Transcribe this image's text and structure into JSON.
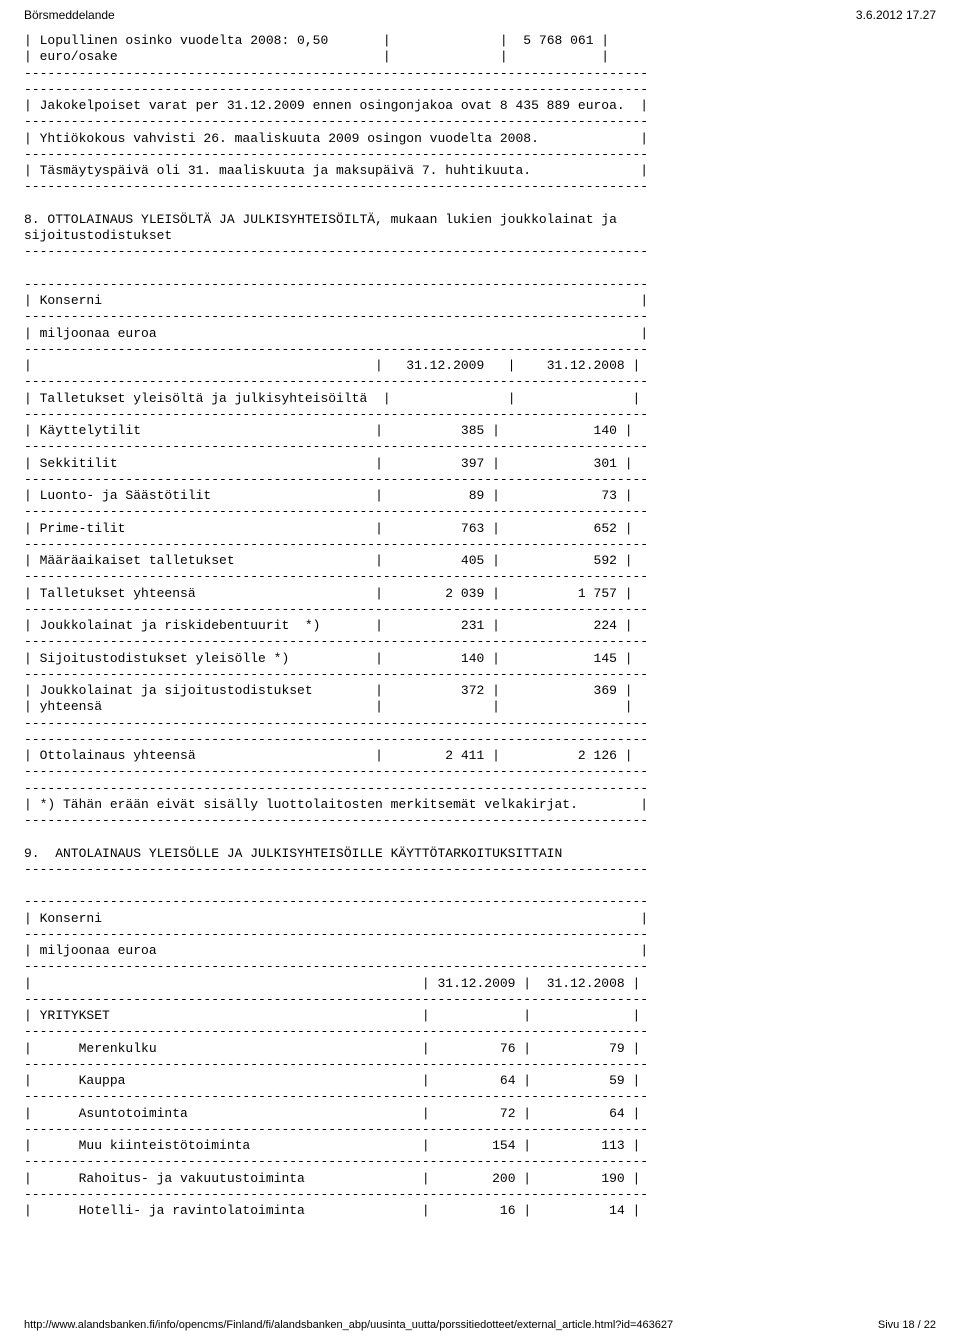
{
  "header": {
    "left": "Börsmeddelande",
    "right": "3.6.2012 17.27"
  },
  "footer": {
    "url": "http://www.alandsbanken.fi/info/opencms/Finland/fi/alandsbanken_abp/uusinta_uutta/porssitiedotteet/external_article.html?id=463627",
    "page": "Sivu 18 / 22"
  },
  "dividend": {
    "line1_left": "| Lopullinen osinko vuodelta 2008: 0,50",
    "line1_right": "5 768 061 |",
    "line2": "| euro/osake",
    "jakokelpoiset": "| Jakokelpoiset varat per 31.12.2009 ennen osingonjakoa ovat 8 435 889 euroa.  |",
    "yhtiokokous": "| Yhtiökokous vahvisti 26. maaliskuuta 2009 osingon vuodelta 2008.             |",
    "tasmaytys": "| Täsmäytyspäivä oli 31. maaliskuuta ja maksupäivä 7. huhtikuuta.              |"
  },
  "section8": {
    "heading_l1": "8. OTTOLAINAUS YLEISÖLTÄ JA JULKISYHTEISÖILTÄ, mukaan lukien joukkolainat ja",
    "heading_l2": "sijoitustodistukset",
    "konserni": "Konserni",
    "miljoonaa": "miljoonaa euroa",
    "col1": "31.12.2009",
    "col2": "31.12.2008",
    "rows": {
      "talletukset_header": "Talletukset yleisöltä ja julkisyhteisöiltä",
      "kayttelytilit": {
        "label": "Käyttelytilit",
        "v1": "385",
        "v2": "140"
      },
      "sekkitilit": {
        "label": "Sekkitilit",
        "v1": "397",
        "v2": "301"
      },
      "luonto": {
        "label": "Luonto- ja Säästötilit",
        "v1": "89",
        "v2": "73"
      },
      "prime": {
        "label": "Prime-tilit",
        "v1": "763",
        "v2": "652"
      },
      "maara": {
        "label": "Määräaikaiset talletukset",
        "v1": "405",
        "v2": "592"
      },
      "tall_yht": {
        "label": "Talletukset yhteensä",
        "v1": "2 039",
        "v2": "1 757"
      },
      "joukko_riski": {
        "label": "Joukkolainat ja riskidebentuurit  *)",
        "v1": "231",
        "v2": "224"
      },
      "sijoitus_yl": {
        "label": "Sijoitustodistukset yleisölle *)",
        "v1": "140",
        "v2": "145"
      },
      "joukko_sij_l1": {
        "label": "Joukkolainat ja sijoitustodistukset",
        "v1": "372",
        "v2": "369"
      },
      "joukko_sij_l2": "yhteensä",
      "otto_yht": {
        "label": "Ottolainaus yhteensä",
        "v1": "2 411",
        "v2": "2 126"
      },
      "footnote": "| *) Tähän erään eivät sisälly luottolaitosten merkitsemät velkakirjat.        |"
    }
  },
  "section9": {
    "heading": "9.  ANTOLAINAUS YLEISÖLLE JA JULKISYHTEISÖILLE KÄYTTÖTARKOITUKSITTAIN",
    "konserni": "Konserni",
    "miljoonaa": "miljoonaa euroa",
    "col1": "31.12.2009",
    "col2": "31.12.2008",
    "yritykset": "YRITYKSET",
    "rows": {
      "merenkulku": {
        "label": "Merenkulku",
        "v1": "76",
        "v2": "79"
      },
      "kauppa": {
        "label": "Kauppa",
        "v1": "64",
        "v2": "59"
      },
      "asunto": {
        "label": "Asuntotoiminta",
        "v1": "72",
        "v2": "64"
      },
      "muukii": {
        "label": "Muu kiinteistötoiminta",
        "v1": "154",
        "v2": "113"
      },
      "rahoitus": {
        "label": "Rahoitus- ja vakuutustoiminta",
        "v1": "200",
        "v2": "190"
      },
      "hotelli": {
        "label": "Hotelli- ja ravintolatoiminta",
        "v1": "16",
        "v2": "14"
      }
    }
  }
}
